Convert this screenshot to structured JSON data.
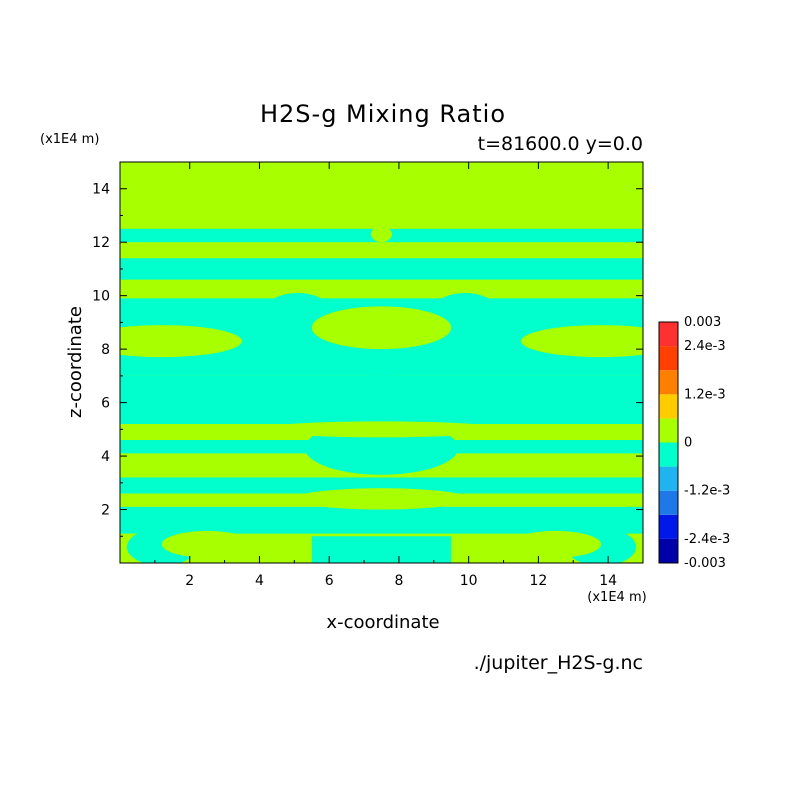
{
  "chart_data": {
    "type": "heatmap",
    "title": "H2S-g Mixing Ratio",
    "subtitle": "t=81600.0 y=0.0",
    "xlabel": "x-coordinate",
    "ylabel": "z-coordinate",
    "x_unit": "(x1E4 m)",
    "y_unit": "(x1E4 m)",
    "xlim": [
      0,
      15
    ],
    "ylim": [
      0,
      15
    ],
    "x_ticks": [
      "2",
      "4",
      "6",
      "8",
      "10",
      "12",
      "14"
    ],
    "y_ticks": [
      "2",
      "4",
      "6",
      "8",
      "10",
      "12",
      "14"
    ],
    "source": "./jupiter_H2S-g.nc",
    "colorbar": {
      "labels": [
        "0.003",
        "2.4e-3",
        "1.2e-3",
        "0",
        "-1.2e-3",
        "-2.4e-3",
        "-0.003"
      ],
      "levels": [
        -0.003,
        -0.0024,
        -0.0018,
        -0.0012,
        -0.0006,
        0,
        0.0006,
        0.0012,
        0.0018,
        0.0024,
        0.003
      ],
      "colors": [
        "#0000a8",
        "#0018e8",
        "#1f78e8",
        "#1fb4f0",
        "#00ffcc",
        "#a8ff00",
        "#ffcc00",
        "#ff8000",
        "#ff4000",
        "#ff3030"
      ]
    },
    "background_color": "#a8ff00",
    "band_color": "#00ffcc",
    "bands": [
      {
        "z": [
          12.0,
          12.5
        ],
        "x": [
          0.0,
          15.0
        ]
      },
      {
        "z": [
          10.6,
          11.4
        ],
        "x": [
          0.0,
          15.0
        ]
      },
      {
        "z": [
          7.0,
          9.9
        ],
        "x": [
          0.0,
          15.0
        ]
      },
      {
        "z": [
          5.2,
          7.0
        ],
        "x": [
          0.0,
          15.0
        ]
      },
      {
        "z": [
          4.1,
          4.6
        ],
        "x": [
          0.0,
          15.0
        ]
      },
      {
        "z": [
          2.6,
          3.2
        ],
        "x": [
          0.0,
          15.0
        ]
      },
      {
        "z": [
          1.1,
          2.1
        ],
        "x": [
          0.0,
          15.0
        ]
      },
      {
        "z": [
          0.0,
          1.0
        ],
        "x": [
          5.5,
          9.5
        ]
      }
    ],
    "lobes": [
      {
        "x": 7.5,
        "z": 8.2,
        "rx": 2.8,
        "rz": 1.2
      },
      {
        "x": 7.5,
        "z": 4.3,
        "rx": 2.2,
        "rz": 1.0
      },
      {
        "x": 5.1,
        "z": 9.5,
        "rx": 0.9,
        "rz": 0.6
      },
      {
        "x": 9.9,
        "z": 9.5,
        "rx": 0.9,
        "rz": 0.6
      },
      {
        "x": 1.2,
        "z": 0.6,
        "rx": 1.0,
        "rz": 0.7
      },
      {
        "x": 13.8,
        "z": 0.6,
        "rx": 1.0,
        "rz": 0.7
      }
    ],
    "patches": [
      {
        "x": 7.5,
        "z": 8.8,
        "rx": 2.0,
        "rz": 0.8
      },
      {
        "x": 7.5,
        "z": 5.0,
        "rx": 3.5,
        "rz": 0.3
      },
      {
        "x": 7.5,
        "z": 2.4,
        "rx": 2.5,
        "rz": 0.4
      },
      {
        "x": 1.2,
        "z": 8.3,
        "rx": 2.3,
        "rz": 0.6
      },
      {
        "x": 13.8,
        "z": 8.3,
        "rx": 2.3,
        "rz": 0.6
      },
      {
        "x": 7.5,
        "z": 12.3,
        "rx": 0.3,
        "rz": 0.3
      },
      {
        "x": 2.5,
        "z": 0.7,
        "rx": 1.3,
        "rz": 0.5
      },
      {
        "x": 12.5,
        "z": 0.7,
        "rx": 1.3,
        "rz": 0.5
      }
    ]
  }
}
